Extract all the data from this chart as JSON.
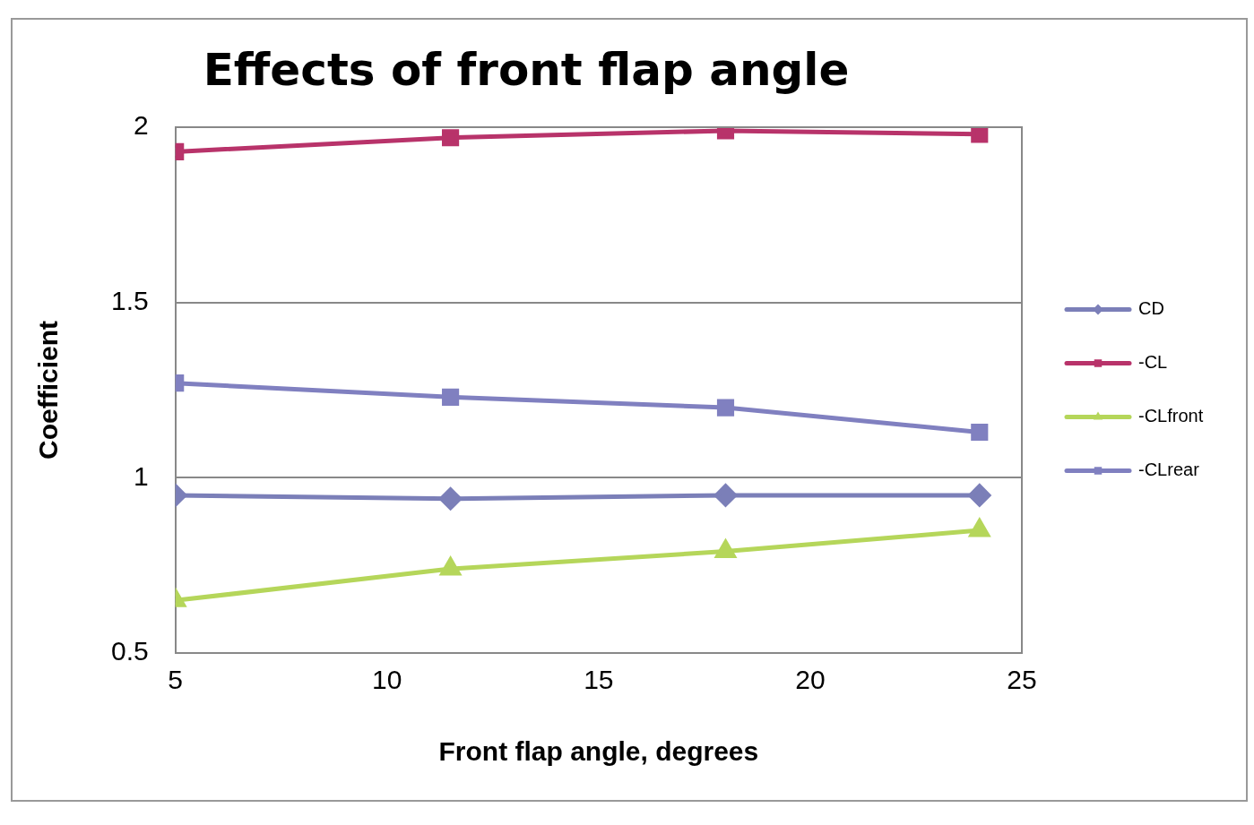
{
  "chart_data": {
    "type": "line",
    "title": "Effects of front flap angle",
    "xlabel": "Front flap angle, degrees",
    "ylabel": "Coefficient",
    "x": [
      5,
      11.5,
      18,
      24
    ],
    "series": [
      {
        "name": "CD",
        "color": "#7b7fb8",
        "marker": "diamond",
        "values": [
          0.95,
          0.94,
          0.95,
          0.95
        ]
      },
      {
        "name": "-CL",
        "color": "#b8336a",
        "marker": "square",
        "values": [
          1.93,
          1.97,
          1.99,
          1.98
        ]
      },
      {
        "name": "-CLfront",
        "color": "#b5d65a",
        "marker": "triangle",
        "values": [
          0.65,
          0.74,
          0.79,
          0.85
        ]
      },
      {
        "name": "-CLrear",
        "color": "#8080c0",
        "marker": "square",
        "values": [
          1.27,
          1.23,
          1.2,
          1.13
        ]
      }
    ],
    "xlim": [
      5,
      25
    ],
    "xticks": [
      5,
      10,
      15,
      20,
      25
    ],
    "ylim": [
      0.5,
      2
    ],
    "yticks": [
      0.5,
      1,
      1.5,
      2
    ],
    "grid": "y",
    "legend": "right"
  }
}
